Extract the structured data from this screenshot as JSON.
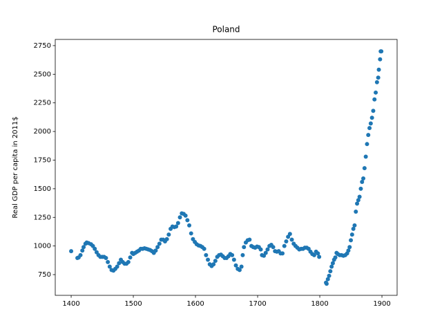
{
  "chart_data": {
    "type": "scatter",
    "title": "Poland",
    "y_label": "Real GDP per capita in 2011$",
    "color": "#1f77b4",
    "x": [
      1400,
      1410,
      1412,
      1415,
      1418,
      1420,
      1423,
      1425,
      1428,
      1432,
      1435,
      1438,
      1441,
      1444,
      1447,
      1450,
      1453,
      1456,
      1459,
      1462,
      1465,
      1468,
      1471,
      1474,
      1477,
      1480,
      1483,
      1486,
      1489,
      1492,
      1495,
      1498,
      1500,
      1503,
      1506,
      1509,
      1512,
      1515,
      1518,
      1521,
      1524,
      1527,
      1530,
      1533,
      1536,
      1539,
      1542,
      1545,
      1548,
      1551,
      1554,
      1557,
      1560,
      1563,
      1566,
      1569,
      1572,
      1575,
      1578,
      1581,
      1584,
      1587,
      1590,
      1593,
      1596,
      1599,
      1602,
      1605,
      1608,
      1611,
      1614,
      1617,
      1620,
      1623,
      1626,
      1629,
      1632,
      1635,
      1638,
      1641,
      1644,
      1647,
      1650,
      1653,
      1656,
      1659,
      1662,
      1665,
      1668,
      1671,
      1674,
      1676,
      1678,
      1681,
      1684,
      1687,
      1690,
      1693,
      1696,
      1699,
      1702,
      1705,
      1707,
      1710,
      1713,
      1716,
      1719,
      1722,
      1725,
      1728,
      1731,
      1734,
      1737,
      1740,
      1743,
      1746,
      1749,
      1752,
      1755,
      1758,
      1761,
      1764,
      1767,
      1770,
      1773,
      1776,
      1779,
      1782,
      1785,
      1788,
      1791,
      1794,
      1797,
      1799,
      1810,
      1811,
      1813,
      1815,
      1817,
      1819,
      1821,
      1823,
      1825,
      1827,
      1829,
      1832,
      1835,
      1838,
      1841,
      1844,
      1846,
      1848,
      1850,
      1852,
      1854,
      1856,
      1858,
      1860,
      1862,
      1864,
      1866,
      1868,
      1870,
      1872,
      1874,
      1876,
      1878,
      1880,
      1882,
      1884,
      1886,
      1888,
      1890,
      1892,
      1894,
      1895,
      1897,
      1898,
      1899
    ],
    "values": [
      955,
      895,
      900,
      920,
      960,
      990,
      1020,
      1030,
      1025,
      1015,
      1000,
      975,
      945,
      920,
      905,
      905,
      905,
      895,
      860,
      820,
      790,
      785,
      800,
      820,
      850,
      880,
      860,
      845,
      845,
      860,
      900,
      940,
      930,
      940,
      950,
      960,
      975,
      975,
      980,
      975,
      970,
      965,
      955,
      940,
      960,
      990,
      1020,
      1055,
      1055,
      1040,
      1060,
      1100,
      1150,
      1170,
      1165,
      1170,
      1200,
      1250,
      1285,
      1280,
      1265,
      1225,
      1180,
      1110,
      1060,
      1035,
      1015,
      1005,
      1000,
      990,
      975,
      920,
      880,
      840,
      825,
      840,
      870,
      905,
      920,
      925,
      910,
      895,
      895,
      910,
      930,
      920,
      880,
      830,
      800,
      790,
      820,
      920,
      990,
      1030,
      1050,
      1055,
      1000,
      990,
      985,
      995,
      990,
      970,
      920,
      915,
      940,
      970,
      1000,
      1010,
      990,
      955,
      950,
      955,
      935,
      935,
      1000,
      1040,
      1080,
      1105,
      1055,
      1020,
      1000,
      985,
      970,
      975,
      975,
      985,
      985,
      975,
      950,
      930,
      920,
      950,
      935,
      905,
      680,
      670,
      710,
      740,
      780,
      820,
      850,
      880,
      900,
      940,
      930,
      920,
      920,
      915,
      920,
      935,
      960,
      990,
      1050,
      1100,
      1150,
      1180,
      1300,
      1370,
      1400,
      1430,
      1500,
      1560,
      1590,
      1680,
      1780,
      1890,
      1970,
      2030,
      2070,
      2120,
      2180,
      2280,
      2340,
      2430,
      2470,
      2540,
      2630,
      2700,
      2700
    ],
    "xlim": [
      1374.4,
      1924.4
    ],
    "ylim": [
      569,
      2804
    ],
    "xticks": [
      1400,
      1500,
      1600,
      1700,
      1800,
      1900
    ],
    "yticks": [
      750,
      1000,
      1250,
      1500,
      1750,
      2000,
      2250,
      2500,
      2750
    ]
  }
}
